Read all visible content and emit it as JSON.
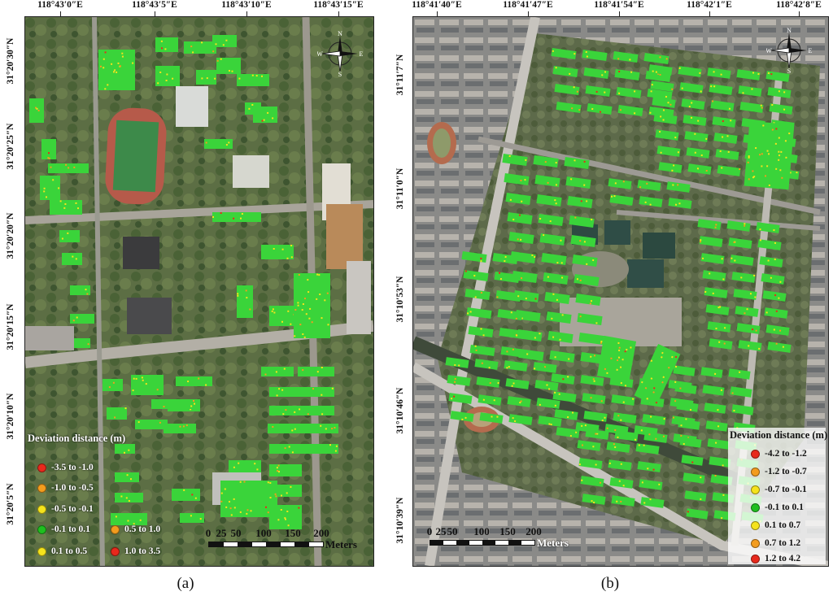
{
  "panels": [
    {
      "id": "a",
      "label": "(a)",
      "lon_labels": [
        "118°43′0″E",
        "118°43′5″E",
        "118°43′10″E",
        "118°43′15″E"
      ],
      "lat_labels": [
        "31°20′30″N",
        "31°20′25″N",
        "31°20′20″N",
        "31°20′15″N",
        "31°20′10″N",
        "31°20′5″N"
      ],
      "legend": {
        "title": "Deviation distance (m)",
        "items": [
          {
            "label": "-3.5 to -1.0",
            "color": "#e8291c"
          },
          {
            "label": "-1.0 to -0.5",
            "color": "#f39c1e"
          },
          {
            "label": "-0.5 to -0.1",
            "color": "#f5e31c"
          },
          {
            "label": "-0.1 to 0.1",
            "color": "#1fbf1f"
          },
          {
            "label": "0.1 to 0.5",
            "color": "#f5e31c"
          },
          {
            "label": "0.5 to 1.0",
            "color": "#f39c1e"
          },
          {
            "label": "1.0 to 3.5",
            "color": "#e8291c"
          }
        ]
      },
      "scale": {
        "labels": [
          "0",
          "25",
          "50",
          "100",
          "150",
          "200"
        ],
        "unit": "Meters"
      },
      "compass": {
        "n": "N",
        "s": "S",
        "e": "E",
        "w": "W",
        "icon": "north-arrow-icon"
      }
    },
    {
      "id": "b",
      "label": "(b)",
      "lon_labels": [
        "118°41′40″E",
        "118°41′47″E",
        "118°41′54″E",
        "118°42′1″E",
        "118°42′8″E"
      ],
      "lat_labels": [
        "31°11′7″N",
        "31°11′0″N",
        "31°10′53″N",
        "31°10′46″N",
        "31°10′39″N"
      ],
      "legend": {
        "title": "Deviation distance (m)",
        "items": [
          {
            "label": "-4.2 to -1.2",
            "color": "#e8291c"
          },
          {
            "label": "-1.2 to -0.7",
            "color": "#f39c1e"
          },
          {
            "label": "-0.7 to -0.1",
            "color": "#f5e31c"
          },
          {
            "label": "-0.1 to 0.1",
            "color": "#1fbf1f"
          },
          {
            "label": "0.1 to 0.7",
            "color": "#f5e31c"
          },
          {
            "label": "0.7 to 1.2",
            "color": "#f39c1e"
          },
          {
            "label": "1.2 to 4.2",
            "color": "#e8291c"
          }
        ]
      },
      "scale": {
        "labels": [
          "0",
          "25",
          "50",
          "100",
          "150",
          "200"
        ],
        "unit": "Meters"
      },
      "compass": {
        "n": "N",
        "s": "S",
        "e": "E",
        "w": "W",
        "icon": "north-arrow-icon"
      }
    }
  ]
}
